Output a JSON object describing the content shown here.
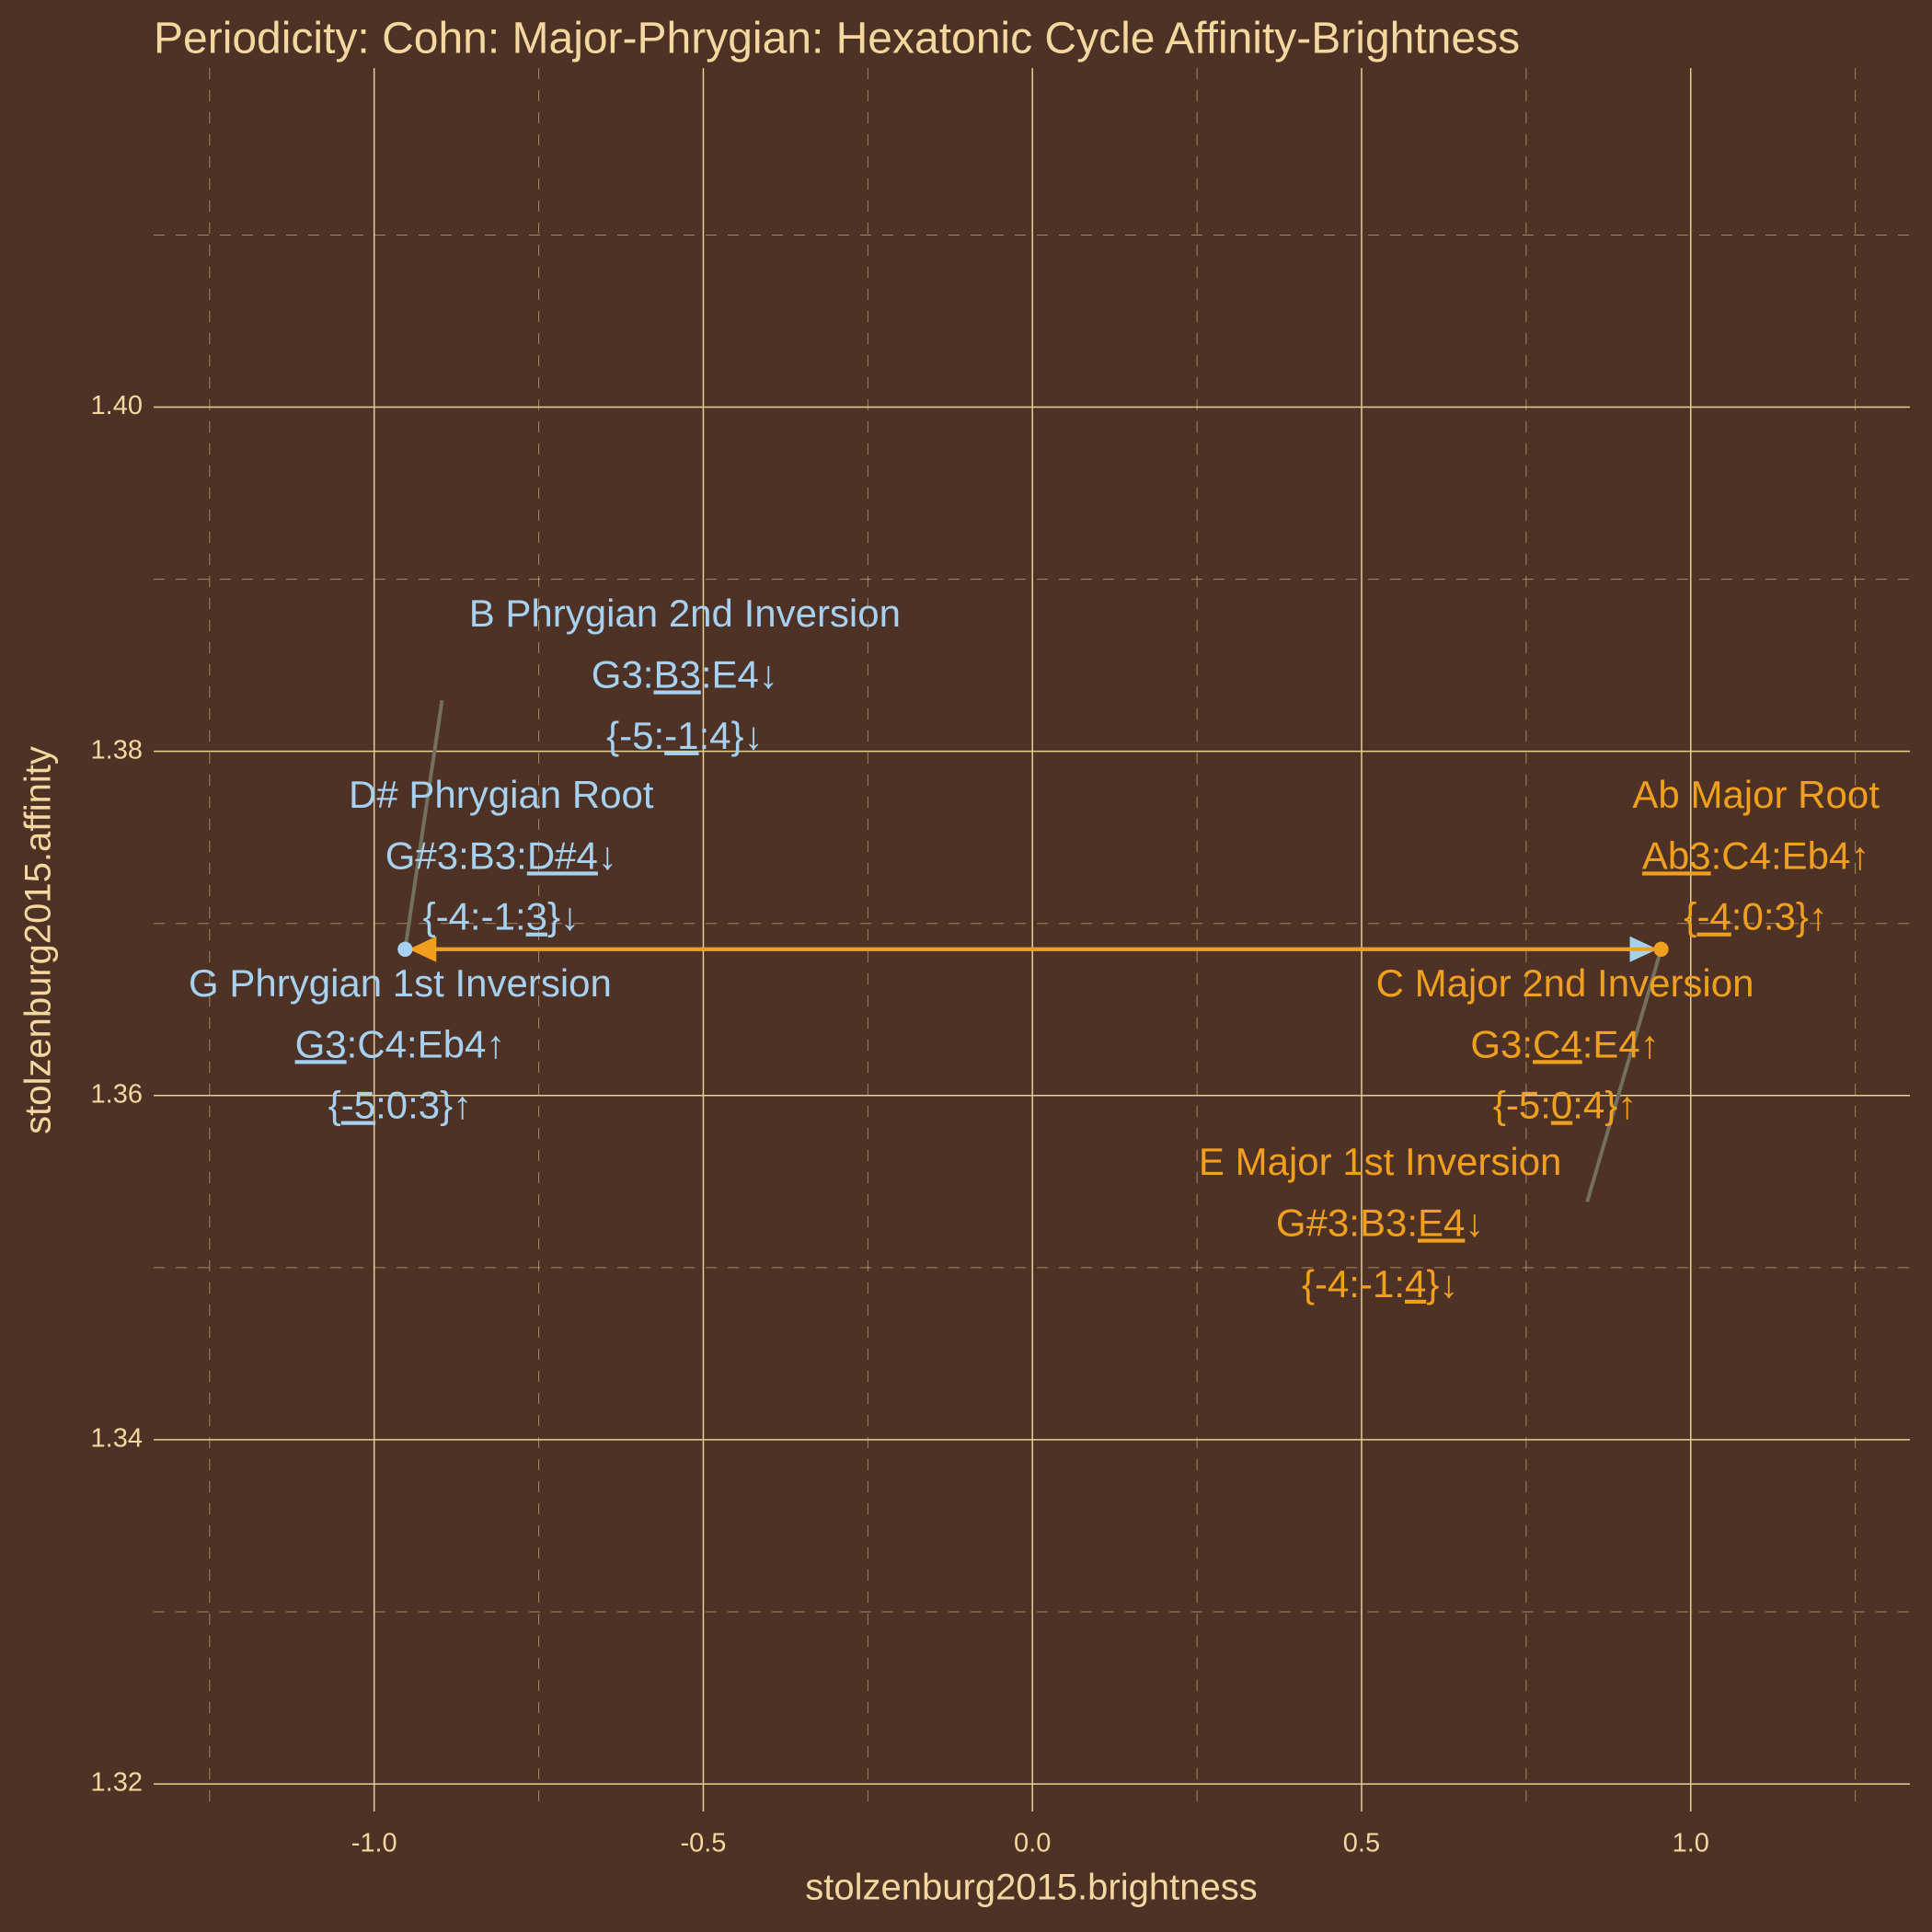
{
  "chart_data": {
    "type": "scatter",
    "title": "Periodicity: Cohn: Major-Phrygian: Hexatonic Cycle Affinity-Brightness",
    "x_label": "stolzenburg2015.brightness",
    "y_label": "stolzenburg2015.affinity",
    "xlim": [
      -1.335,
      1.333
    ],
    "ylim": [
      1.3184,
      1.4197
    ],
    "xticks": [
      {
        "value": -1,
        "label": "-1.0"
      },
      -0.5,
      {
        "value": 0,
        "label": "0.0"
      },
      0.5,
      {
        "value": 1,
        "label": "1.0"
      }
    ],
    "yticks": [
      1.32,
      1.34,
      1.36,
      1.38,
      {
        "value": 1.4,
        "label": "1.40"
      }
    ],
    "xminorticks": [
      -1.25,
      -0.75,
      -0.25,
      0.25,
      0.75,
      1.25
    ],
    "yminorticks": [
      1.33,
      1.35,
      1.37,
      1.39,
      1.41
    ],
    "grid": true,
    "series": [
      {
        "color": "#a6d1f0",
        "points": [
          {
            "x": -0.953,
            "y": 1.3685,
            "label": [
              [
                {
                  "text": "D# Phrygian Root"
                }
              ],
              [
                {
                  "text": "G#3:B3:"
                },
                {
                  "text": "D#4",
                  "u": true
                },
                {
                  "text": "↓"
                }
              ],
              [
                {
                  "text": "{-4:-1:"
                },
                {
                  "text": "3",
                  "u": true
                },
                {
                  "text": "}↓"
                }
              ]
            ]
          },
          {
            "x": -0.953,
            "y": 1.3685,
            "label": [
              [
                {
                  "text": "G Phrygian 1st Inversion"
                }
              ],
              [
                {
                  "text": "G3",
                  "u": true
                },
                {
                  "text": ":C4:Eb4↑"
                }
              ],
              [
                {
                  "text": "{"
                },
                {
                  "text": "-5",
                  "u": true
                },
                {
                  "text": ":0:3}↑"
                }
              ]
            ]
          },
          {
            "x": -0.953,
            "y": 1.3685,
            "label": [
              [
                {
                  "text": "B Phrygian 2nd Inversion"
                }
              ],
              [
                {
                  "text": "G3:"
                },
                {
                  "text": "B3",
                  "u": true
                },
                {
                  "text": ":E4↓"
                }
              ],
              [
                {
                  "text": "{-5:"
                },
                {
                  "text": "-1",
                  "u": true
                },
                {
                  "text": ":4}↓"
                }
              ]
            ]
          }
        ]
      },
      {
        "color": "#f0a01e",
        "points": [
          {
            "x": 0.955,
            "y": 1.3685,
            "label": [
              [
                {
                  "text": "Ab Major Root"
                }
              ],
              [
                {
                  "text": "Ab3",
                  "u": true
                },
                {
                  "text": ":C4:Eb4↑"
                }
              ],
              [
                {
                  "text": "{"
                },
                {
                  "text": "-4",
                  "u": true
                },
                {
                  "text": ":0:3}↑"
                }
              ]
            ]
          },
          {
            "x": 0.955,
            "y": 1.3685,
            "label": [
              [
                {
                  "text": "E Major 1st Inversion"
                }
              ],
              [
                {
                  "text": "G#3:B3:"
                },
                {
                  "text": "E4",
                  "u": true
                },
                {
                  "text": "↓"
                }
              ],
              [
                {
                  "text": "{-4:-1:"
                },
                {
                  "text": "4",
                  "u": true
                },
                {
                  "text": "}↓"
                }
              ]
            ]
          },
          {
            "x": 0.955,
            "y": 1.3685,
            "label": [
              [
                {
                  "text": "C Major 2nd Inversion"
                }
              ],
              [
                {
                  "text": "G3:"
                },
                {
                  "text": "C4",
                  "u": true
                },
                {
                  "text": ":E4↑"
                }
              ],
              [
                {
                  "text": "{-5:"
                },
                {
                  "text": "0",
                  "u": true
                },
                {
                  "text": ":4}↑"
                }
              ]
            ]
          }
        ]
      }
    ]
  }
}
